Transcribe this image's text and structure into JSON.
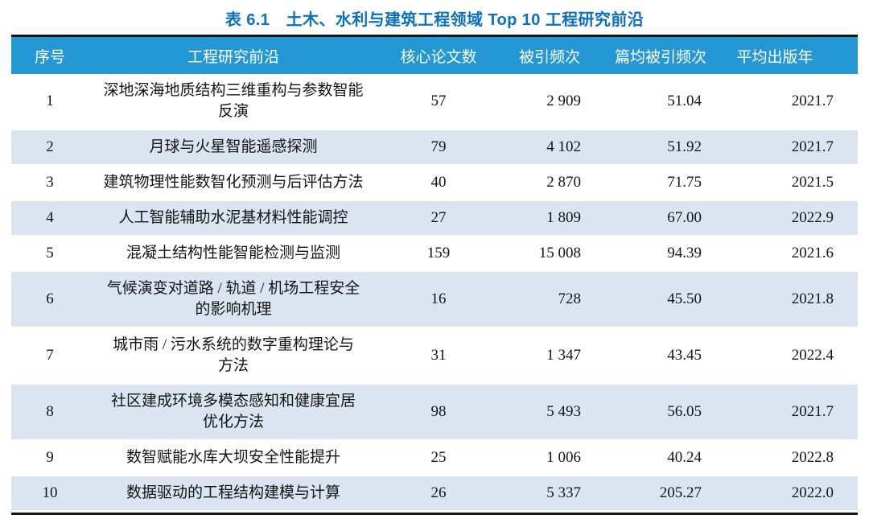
{
  "title": "表 6.1　土木、水利与建筑工程领域 Top 10 工程研究前沿",
  "colors": {
    "title_blue": "#0b70c0",
    "header_bg_blue": "#2498d5",
    "header_text": "#ffffff",
    "row_alt_blue": "#dbe5f1",
    "rule_black": "#161616"
  },
  "table": {
    "headers": [
      "序号",
      "工程研究前沿",
      "核心论文数",
      "被引频次",
      "篇均被引频次",
      "平均出版年"
    ],
    "rows": [
      {
        "no": "1",
        "front": "深地深海地质结构三维重构与参数智能\n反演",
        "core_papers": "57",
        "citations": "2 909",
        "citations_per_paper": "51.04",
        "mean_year": "2021.7"
      },
      {
        "no": "2",
        "front": "月球与火星智能遥感探测",
        "core_papers": "79",
        "citations": "4 102",
        "citations_per_paper": "51.92",
        "mean_year": "2021.7"
      },
      {
        "no": "3",
        "front": "建筑物理性能数智化预测与后评估方法",
        "core_papers": "40",
        "citations": "2 870",
        "citations_per_paper": "71.75",
        "mean_year": "2021.5"
      },
      {
        "no": "4",
        "front": "人工智能辅助水泥基材料性能调控",
        "core_papers": "27",
        "citations": "1 809",
        "citations_per_paper": "67.00",
        "mean_year": "2022.9"
      },
      {
        "no": "5",
        "front": "混凝土结构性能智能检测与监测",
        "core_papers": "159",
        "citations": "15 008",
        "citations_per_paper": "94.39",
        "mean_year": "2021.6"
      },
      {
        "no": "6",
        "front": "气候演变对道路 / 轨道 / 机场工程安全\n的影响机理",
        "core_papers": "16",
        "citations": "728",
        "citations_per_paper": "45.50",
        "mean_year": "2021.8"
      },
      {
        "no": "7",
        "front": "城市雨 / 污水系统的数字重构理论与\n方法",
        "core_papers": "31",
        "citations": "1 347",
        "citations_per_paper": "43.45",
        "mean_year": "2022.4"
      },
      {
        "no": "8",
        "front": "社区建成环境多模态感知和健康宜居\n优化方法",
        "core_papers": "98",
        "citations": "5 493",
        "citations_per_paper": "56.05",
        "mean_year": "2021.7"
      },
      {
        "no": "9",
        "front": "数智赋能水库大坝安全性能提升",
        "core_papers": "25",
        "citations": "1 006",
        "citations_per_paper": "40.24",
        "mean_year": "2022.8"
      },
      {
        "no": "10",
        "front": "数据驱动的工程结构建模与计算",
        "core_papers": "26",
        "citations": "5 337",
        "citations_per_paper": "205.27",
        "mean_year": "2022.0"
      }
    ]
  }
}
